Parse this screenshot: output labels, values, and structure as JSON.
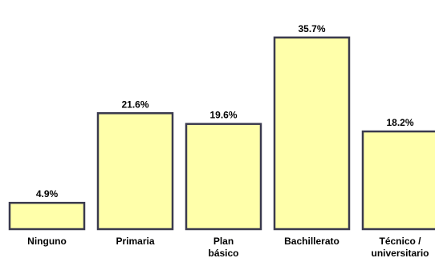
{
  "chart_data": {
    "type": "bar",
    "categories": [
      [
        "Ninguno"
      ],
      [
        "Primaria"
      ],
      [
        "Plan",
        "básico"
      ],
      [
        "Bachillerato"
      ],
      [
        "Técnico /",
        "universitario"
      ]
    ],
    "values": [
      4.9,
      21.6,
      19.6,
      35.7,
      18.2
    ],
    "value_labels": [
      "4.9%",
      "21.6%",
      "19.6%",
      "35.7%",
      "18.2%"
    ],
    "ylim": [
      0,
      36
    ],
    "grid": false,
    "colors": {
      "bar_fill": "#FFFFAA",
      "bar_stroke": "#3A3A4E"
    }
  }
}
